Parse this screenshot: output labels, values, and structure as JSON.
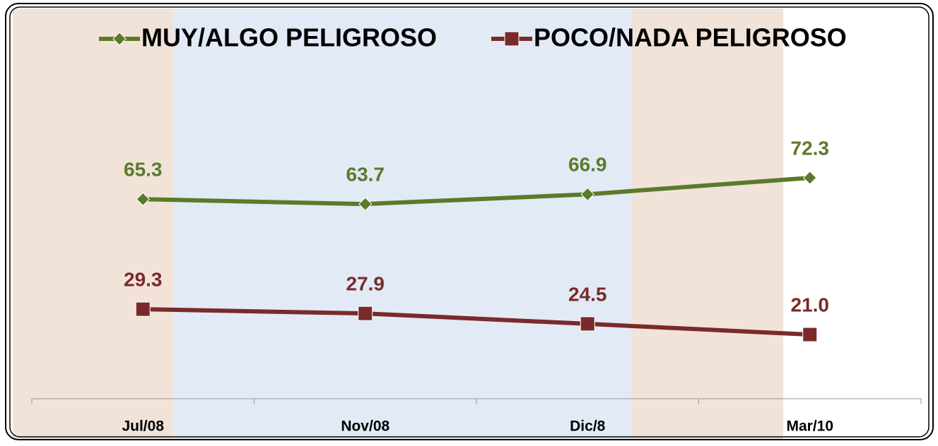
{
  "chart_data": {
    "type": "line",
    "categories": [
      "Jul/08",
      "Nov/08",
      "Dic/8",
      "Mar/10"
    ],
    "series": [
      {
        "name": "MUY/ALGO PELIGROSO",
        "color": "#5b7a2a",
        "values": [
          65.3,
          63.7,
          66.9,
          72.3
        ],
        "value_labels": [
          "65.3",
          "63.7",
          "66.9",
          "72.3"
        ]
      },
      {
        "name": "POCO/NADA PELIGROSO",
        "color": "#7a2a2a",
        "values": [
          29.3,
          27.9,
          24.5,
          21.0
        ],
        "value_labels": [
          "29.3",
          "27.9",
          "24.5",
          "21.0"
        ]
      }
    ],
    "ylim": [
      0,
      100
    ]
  }
}
